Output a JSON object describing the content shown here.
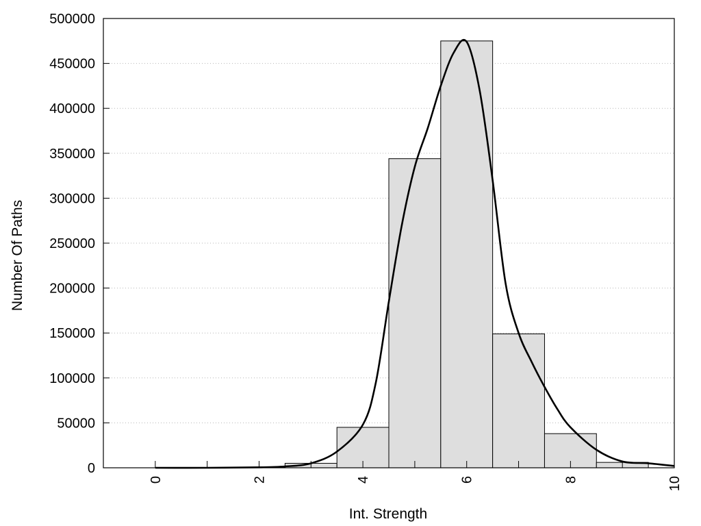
{
  "chart_data": {
    "type": "bar",
    "title": "",
    "xlabel": "Int. Strength",
    "ylabel": "Number Of Paths",
    "xlim": [
      -1,
      10
    ],
    "ylim": [
      0,
      500000
    ],
    "grid": "horizontal-dotted",
    "legend": "none",
    "x_ticks": [
      0,
      2,
      4,
      6,
      8,
      10
    ],
    "y_ticks": [
      0,
      50000,
      100000,
      150000,
      200000,
      250000,
      300000,
      350000,
      400000,
      450000,
      500000
    ],
    "bins": [
      {
        "x": 0,
        "value": 0
      },
      {
        "x": 1,
        "value": 0
      },
      {
        "x": 2,
        "value": 500
      },
      {
        "x": 3,
        "value": 5000
      },
      {
        "x": 4,
        "value": 45000
      },
      {
        "x": 5,
        "value": 344000
      },
      {
        "x": 6,
        "value": 475000
      },
      {
        "x": 7,
        "value": 149000
      },
      {
        "x": 8,
        "value": 38000
      },
      {
        "x": 9,
        "value": 6000
      }
    ],
    "bin_width": 1,
    "bar_color": "#dedede",
    "curve": {
      "x": [
        0,
        1,
        2,
        2.5,
        3,
        3.5,
        4,
        4.25,
        4.5,
        4.75,
        5,
        5.25,
        5.5,
        5.75,
        6,
        6.25,
        6.5,
        6.75,
        7,
        7.25,
        7.5,
        7.75,
        8,
        8.5,
        9,
        9.5,
        10
      ],
      "y": [
        0,
        0,
        500,
        1500,
        5000,
        18000,
        48000,
        95000,
        185000,
        270000,
        335000,
        378000,
        425000,
        462000,
        474000,
        420000,
        320000,
        205000,
        150000,
        118000,
        90000,
        65000,
        45000,
        20000,
        7000,
        5000,
        2000
      ]
    }
  }
}
